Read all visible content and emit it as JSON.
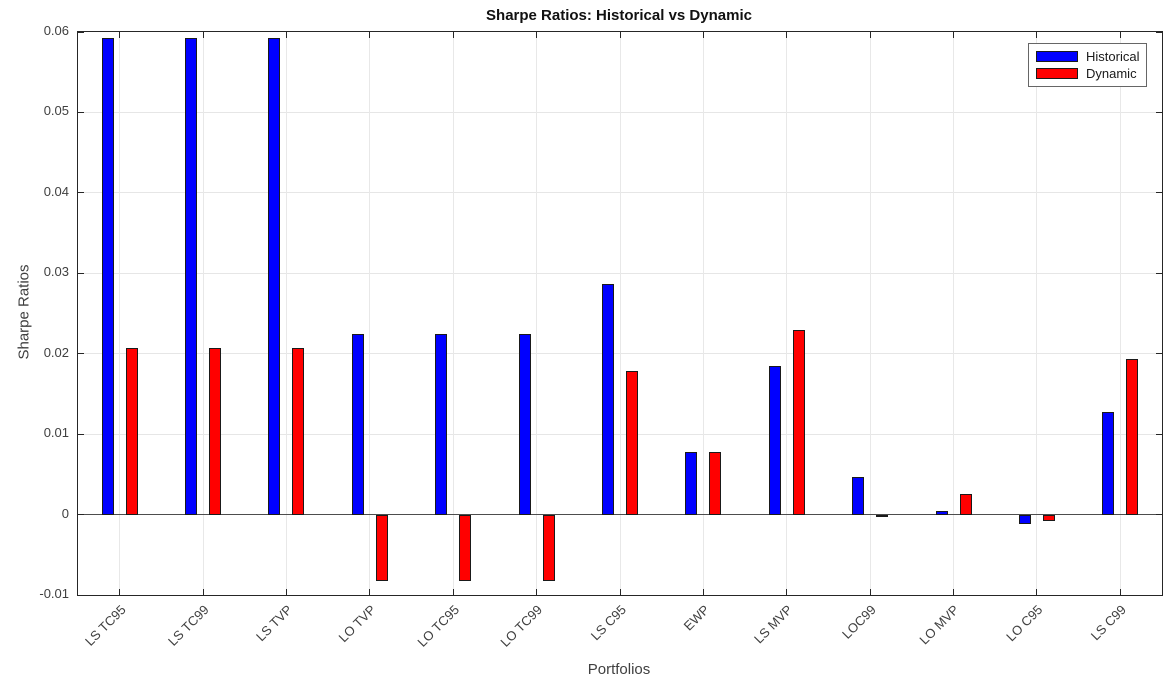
{
  "title": "Sharpe Ratios: Historical vs Dynamic",
  "chart_data": {
    "type": "bar",
    "title": "Sharpe Ratios: Historical vs Dynamic",
    "xlabel": "Portfolios",
    "ylabel": "Sharpe Ratios",
    "categories": [
      "LS TC95",
      "LS TC99",
      "LS TVP",
      "LO TVP",
      "LO TC95",
      "LO TC99",
      "LS C95",
      "EWP",
      "LS MVP",
      "LOC99",
      "LO MVP",
      "LO C95",
      "LS C99"
    ],
    "series": [
      {
        "name": "Historical",
        "color": "#0000ff",
        "values": [
          0.0593,
          0.0593,
          0.0593,
          0.0225,
          0.0225,
          0.0225,
          0.0287,
          0.0078,
          0.0185,
          0.0047,
          0.0005,
          -0.0012,
          0.0127
        ]
      },
      {
        "name": "Dynamic",
        "color": "#ff0000",
        "values": [
          0.0207,
          0.0207,
          0.0207,
          -0.0083,
          -0.0083,
          -0.0083,
          0.0178,
          0.0078,
          0.023,
          -0.0003,
          0.0025,
          -0.0008,
          0.0194
        ]
      }
    ],
    "ylim": [
      -0.01,
      0.06
    ],
    "yticks": [
      0.06,
      0.05,
      0.04,
      0.03,
      0.02,
      0.01,
      0,
      -0.01
    ],
    "ytick_labels": [
      "0.06",
      "0.05",
      "0.04",
      "0.03",
      "0.02",
      "0.01",
      "0",
      "-0.01"
    ],
    "grid": true,
    "legend": {
      "position": "top-right",
      "entries": [
        "Historical",
        "Dynamic"
      ]
    }
  },
  "colors": {
    "historical": "#0000ff",
    "dynamic": "#ff0000",
    "axis": "#262626",
    "gridline": "#e6e6e6",
    "zero_line": "#4d4d4d",
    "background": "#ffffff"
  }
}
